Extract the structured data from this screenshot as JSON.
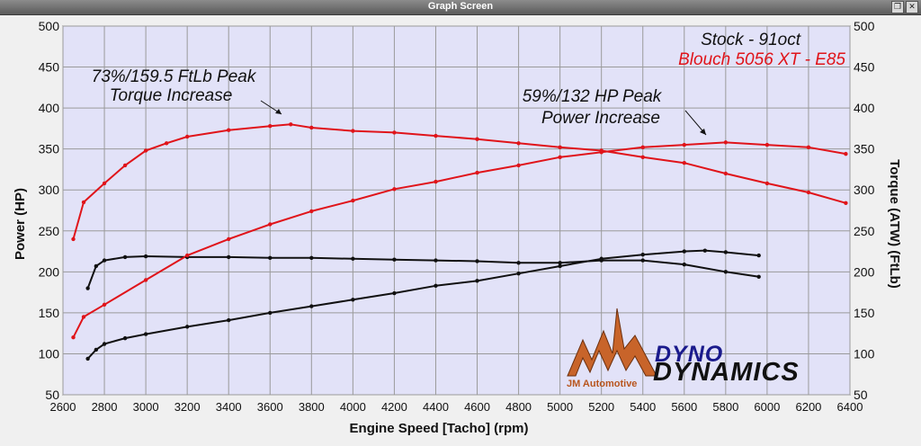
{
  "window": {
    "title": "Graph Screen"
  },
  "legend": {
    "stock": "Stock - 91oct",
    "tuned": "Blouch 5056 XT - E85"
  },
  "annotations": {
    "torque_line1": "73%/159.5 FtLb Peak",
    "torque_line2": "Torque Increase",
    "power_line1": "59%/132 HP Peak",
    "power_line2": "Power Increase"
  },
  "logos": {
    "jm_text": "JM Automotive",
    "dyno_top": "DYNO",
    "dyno_bottom": "DYNAMICS"
  },
  "colors": {
    "plot_bg": "#e2e2f8",
    "stock": "#111111",
    "tuned": "#e0141a",
    "grid": "#9a9a9a"
  },
  "chart_data": {
    "type": "line",
    "xlabel": "Engine Speed [Tacho] (rpm)",
    "ylabel_left": "Power (HP)",
    "ylabel_right": "Torque (ATW) (FtLb)",
    "xlim": [
      2600,
      6400
    ],
    "ylim_left": [
      50,
      500
    ],
    "ylim_right": [
      50,
      500
    ],
    "xticks": [
      2600,
      2800,
      3000,
      3200,
      3400,
      3600,
      3800,
      4000,
      4200,
      4400,
      4600,
      4800,
      5000,
      5200,
      5400,
      5600,
      5800,
      6000,
      6200,
      6400
    ],
    "yticks": [
      50,
      100,
      150,
      200,
      250,
      300,
      350,
      400,
      450,
      500
    ],
    "grid": true,
    "series": [
      {
        "name": "Stock - 91oct",
        "measure": "torque",
        "color": "#111111",
        "x": [
          2720,
          2760,
          2800,
          2900,
          3000,
          3200,
          3400,
          3600,
          3800,
          4000,
          4200,
          4400,
          4600,
          4800,
          5000,
          5200,
          5400,
          5600,
          5800,
          5960
        ],
        "y": [
          180,
          207,
          214,
          218,
          219,
          218,
          218,
          217,
          217,
          216,
          215,
          214,
          213,
          211,
          211,
          214,
          214,
          209,
          200,
          194
        ]
      },
      {
        "name": "Stock - 91oct",
        "measure": "power",
        "color": "#111111",
        "x": [
          2720,
          2760,
          2800,
          2900,
          3000,
          3200,
          3400,
          3600,
          3800,
          4000,
          4200,
          4400,
          4600,
          4800,
          5000,
          5200,
          5400,
          5600,
          5700,
          5800,
          5960
        ],
        "y": [
          94,
          105,
          112,
          119,
          124,
          133,
          141,
          150,
          158,
          166,
          174,
          183,
          189,
          198,
          207,
          216,
          221,
          225,
          226,
          224,
          220
        ]
      },
      {
        "name": "Blouch 5056 XT - E85",
        "measure": "torque",
        "color": "#e0141a",
        "x": [
          2650,
          2700,
          2800,
          2900,
          3000,
          3100,
          3200,
          3400,
          3600,
          3700,
          3800,
          4000,
          4200,
          4400,
          4600,
          4800,
          5000,
          5200,
          5400,
          5600,
          5800,
          6000,
          6200,
          6380
        ],
        "y": [
          240,
          285,
          308,
          330,
          348,
          357,
          365,
          373,
          378,
          380,
          376,
          372,
          370,
          366,
          362,
          357,
          352,
          348,
          340,
          333,
          320,
          308,
          297,
          284
        ]
      },
      {
        "name": "Blouch 5056 XT - E85",
        "measure": "power",
        "color": "#e0141a",
        "x": [
          2650,
          2700,
          2800,
          3000,
          3200,
          3400,
          3600,
          3800,
          4000,
          4200,
          4400,
          4600,
          4800,
          5000,
          5200,
          5400,
          5600,
          5800,
          6000,
          6200,
          6380
        ],
        "y": [
          120,
          145,
          160,
          190,
          220,
          240,
          258,
          274,
          287,
          301,
          310,
          321,
          330,
          340,
          346,
          352,
          355,
          358,
          355,
          352,
          344
        ]
      }
    ]
  }
}
